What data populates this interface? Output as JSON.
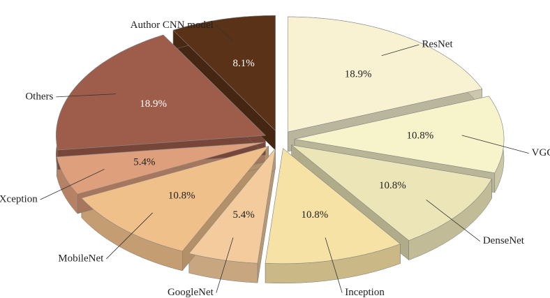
{
  "chart_data": {
    "type": "pie",
    "categories": [
      "ResNet",
      "VGG",
      "DenseNet",
      "Inception",
      "GoogleNet",
      "MobileNet",
      "Xception",
      "Others",
      "Author CNN model"
    ],
    "values": [
      18.9,
      10.8,
      10.8,
      10.8,
      5.4,
      10.8,
      5.4,
      18.9,
      8.1
    ],
    "value_labels": [
      "18.9%",
      "10.8%",
      "10.8%",
      "10.8%",
      "5.4%",
      "10.8%",
      "5.4%",
      "18.9%",
      "8.1%"
    ],
    "colors": [
      "#f8f2d2",
      "#f7f3cb",
      "#ebe5b8",
      "#f6e2a4",
      "#f3cb9c",
      "#f0c08b",
      "#de9f7c",
      "#9e5d4a",
      "#5a3218"
    ]
  }
}
